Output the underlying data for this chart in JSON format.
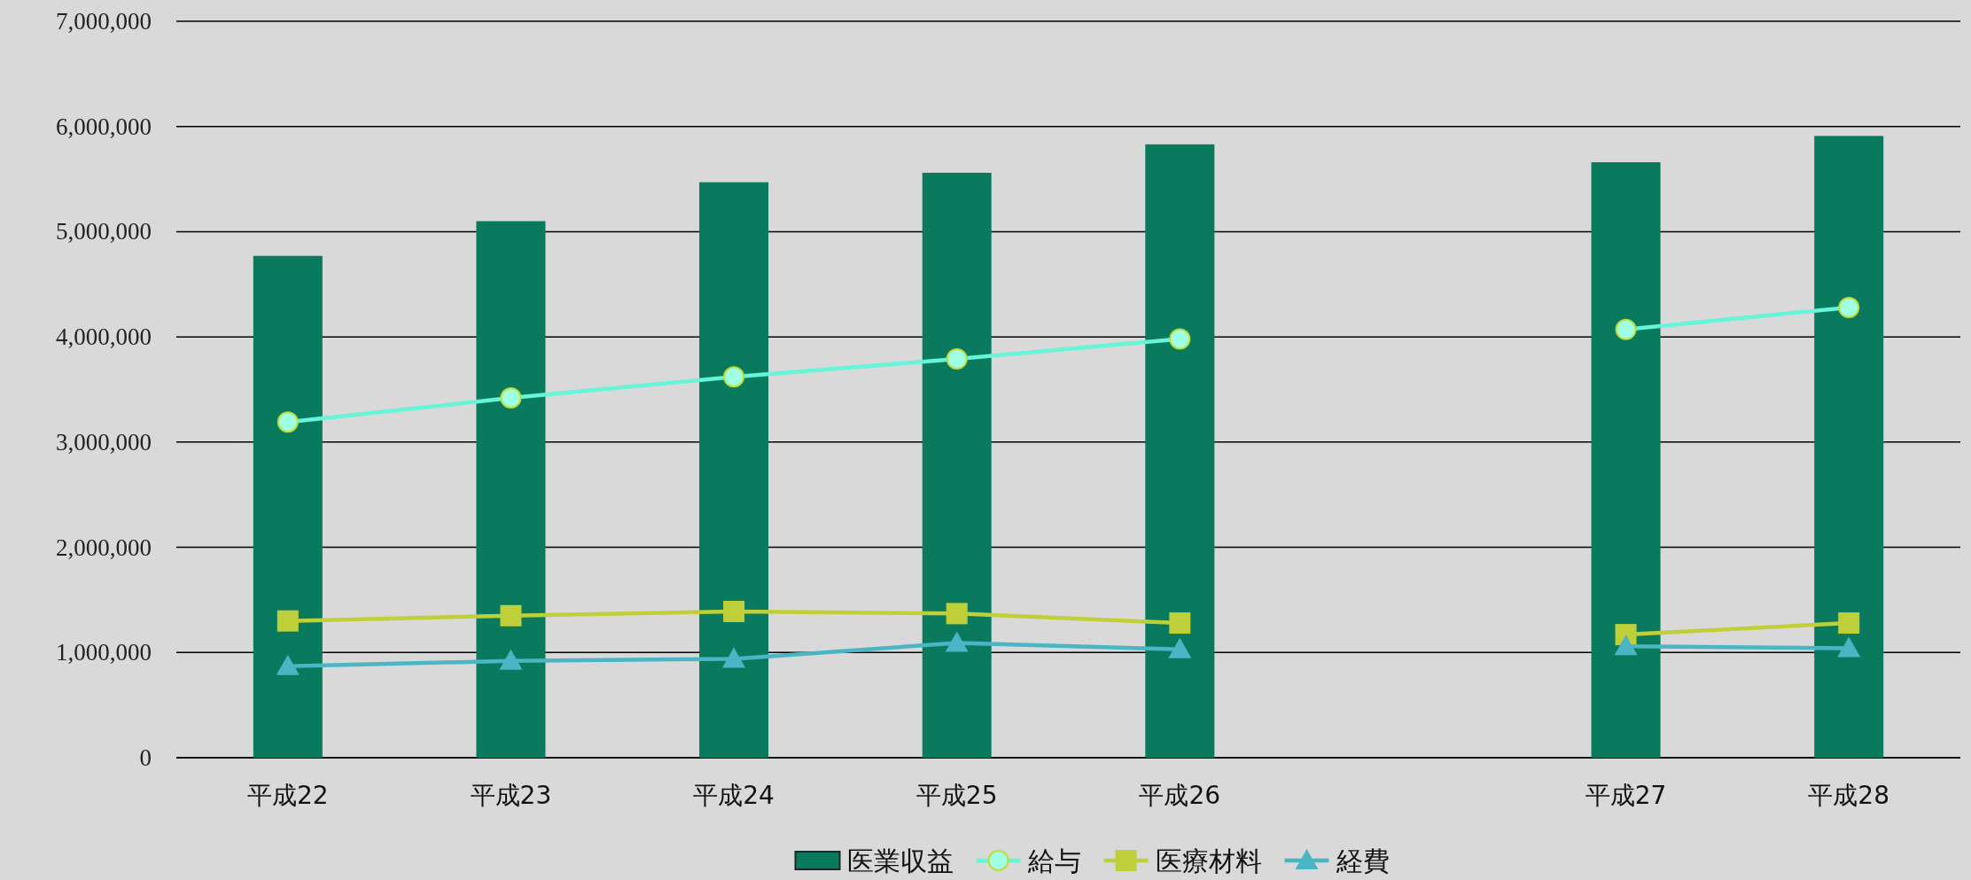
{
  "chart_data": {
    "type": "bar",
    "categories": [
      "平成22",
      "平成23",
      "平成24",
      "平成25",
      "平成26",
      null,
      "平成27",
      "平成28"
    ],
    "series": [
      {
        "name": "医業収益",
        "color": "#0a7a5e",
        "values": [
          4770000,
          5100000,
          5470000,
          5560000,
          5830000,
          null,
          5660000,
          5910000
        ]
      },
      {
        "name": "給与",
        "type": "line",
        "color": "#66f5d8",
        "marker": "circle",
        "values": [
          3190000,
          3420000,
          3620000,
          3790000,
          3980000,
          null,
          4070000,
          4280000
        ]
      },
      {
        "name": "医療材料",
        "type": "line",
        "color": "#bfcf3a",
        "marker": "square",
        "values": [
          1300000,
          1350000,
          1390000,
          1370000,
          1280000,
          null,
          1170000,
          1280000
        ]
      },
      {
        "name": "経費",
        "type": "line",
        "color": "#4ab5c4",
        "marker": "triangle",
        "values": [
          870000,
          920000,
          940000,
          1090000,
          1030000,
          null,
          1060000,
          1040000
        ]
      }
    ],
    "ylim": [
      0,
      7000000
    ],
    "yticks": [
      0,
      {
        "value": 1000000,
        "label": "1,000,000"
      },
      {
        "value": 2000000,
        "label": "2,000,000"
      },
      {
        "value": 3000000,
        "label": "3,000,000"
      },
      {
        "value": 4000000,
        "label": "4,000,000"
      },
      {
        "value": 5000000,
        "label": "5,000,000"
      },
      {
        "value": 6000000,
        "label": "6,000,000"
      },
      {
        "value": 7000000,
        "label": "7,000,000"
      }
    ],
    "grid": "y",
    "legend": "bottom"
  }
}
